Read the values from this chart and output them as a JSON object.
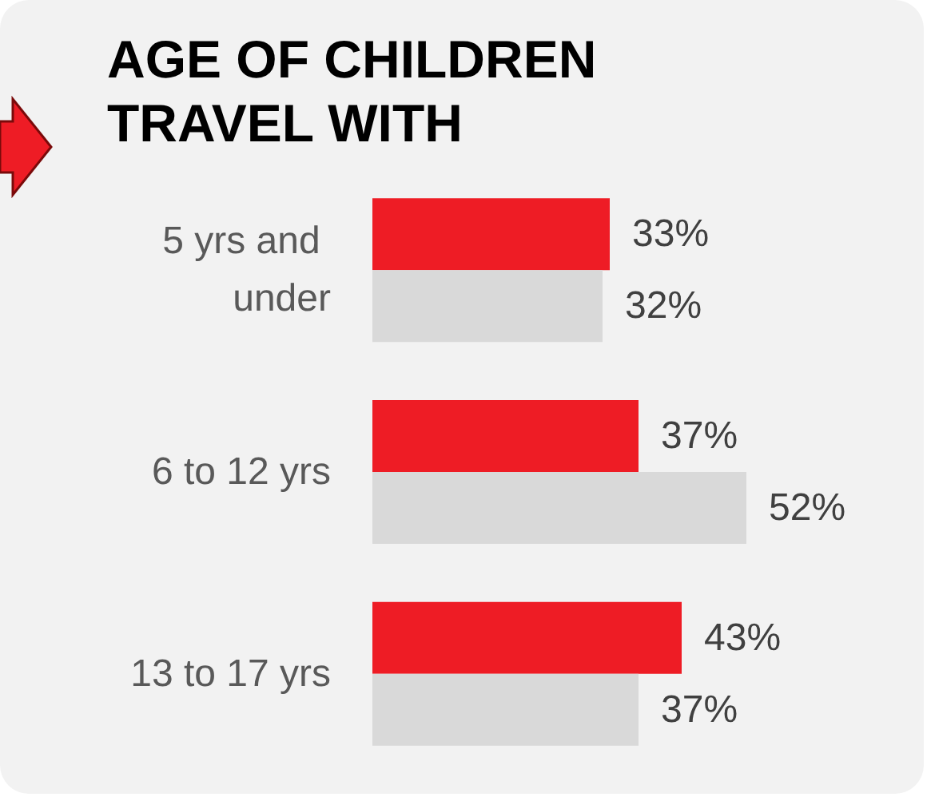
{
  "chart_data": {
    "type": "bar",
    "orientation": "horizontal",
    "title": "AGE OF CHILDREN\nTRAVEL WITH",
    "categories": [
      "5 yrs and under",
      "6 to 12 yrs",
      "13 to 17 yrs"
    ],
    "series": [
      {
        "color": "#ee1c25",
        "values": [
          33,
          37,
          43
        ],
        "value_labels": [
          "33%",
          "37%",
          "43%"
        ]
      },
      {
        "color": "#d9d9d9",
        "values": [
          32,
          52,
          37
        ],
        "value_labels": [
          "32%",
          "52%",
          "37%"
        ]
      }
    ],
    "tick_labels": "y"
  }
}
